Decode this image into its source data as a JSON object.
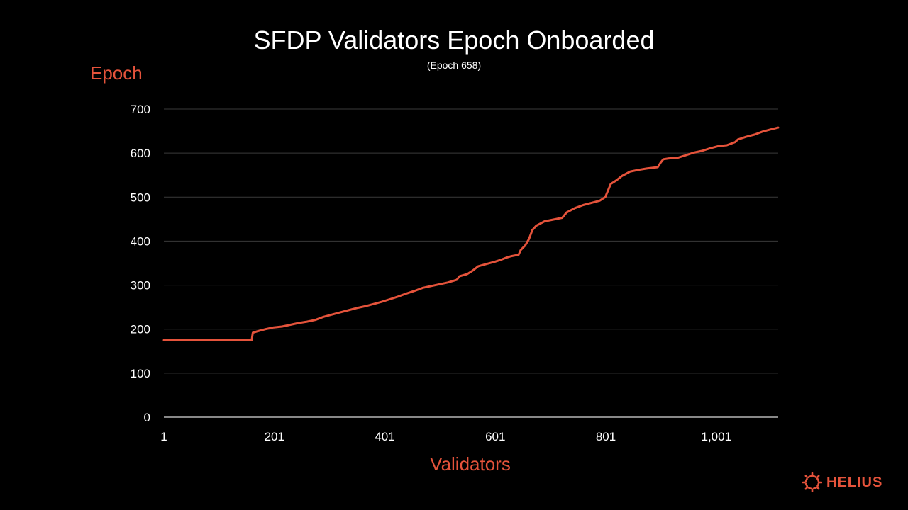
{
  "colors": {
    "background": "#000000",
    "accent": "#E5533B",
    "grid": "#3a3a3a",
    "text": "#ffffff"
  },
  "brand": {
    "name": "HELIUS",
    "icon": "helius-sun-icon"
  },
  "chart_data": {
    "type": "line",
    "title": "SFDP Validators Epoch Onboarded",
    "subtitle": "(Epoch 658)",
    "xlabel": "Validators",
    "ylabel": "Epoch",
    "ylim": [
      0,
      700
    ],
    "xlim": [
      1,
      1113
    ],
    "yticks": [
      0,
      100,
      200,
      300,
      400,
      500,
      600,
      700
    ],
    "xticks": [
      1,
      201,
      401,
      601,
      801,
      1001
    ],
    "xtick_labels": [
      "1",
      "201",
      "401",
      "601",
      "801",
      "1,001"
    ],
    "grid": true,
    "series": [
      {
        "color": "#E5533B",
        "points": [
          [
            1,
            175
          ],
          [
            160,
            175
          ],
          [
            162,
            192
          ],
          [
            170,
            195
          ],
          [
            185,
            200
          ],
          [
            200,
            204
          ],
          [
            215,
            206
          ],
          [
            230,
            210
          ],
          [
            245,
            214
          ],
          [
            260,
            217
          ],
          [
            275,
            221
          ],
          [
            290,
            228
          ],
          [
            305,
            233
          ],
          [
            320,
            238
          ],
          [
            335,
            243
          ],
          [
            350,
            248
          ],
          [
            365,
            252
          ],
          [
            380,
            257
          ],
          [
            395,
            262
          ],
          [
            410,
            268
          ],
          [
            425,
            274
          ],
          [
            440,
            281
          ],
          [
            455,
            287
          ],
          [
            470,
            294
          ],
          [
            485,
            298
          ],
          [
            500,
            302
          ],
          [
            515,
            306
          ],
          [
            531,
            312
          ],
          [
            536,
            320
          ],
          [
            550,
            325
          ],
          [
            560,
            333
          ],
          [
            570,
            343
          ],
          [
            585,
            348
          ],
          [
            600,
            353
          ],
          [
            610,
            357
          ],
          [
            620,
            362
          ],
          [
            630,
            366
          ],
          [
            643,
            369
          ],
          [
            647,
            380
          ],
          [
            655,
            390
          ],
          [
            662,
            405
          ],
          [
            668,
            425
          ],
          [
            675,
            435
          ],
          [
            690,
            445
          ],
          [
            710,
            450
          ],
          [
            722,
            453
          ],
          [
            730,
            465
          ],
          [
            745,
            475
          ],
          [
            760,
            482
          ],
          [
            775,
            487
          ],
          [
            790,
            492
          ],
          [
            800,
            500
          ],
          [
            805,
            515
          ],
          [
            810,
            530
          ],
          [
            820,
            538
          ],
          [
            830,
            548
          ],
          [
            845,
            558
          ],
          [
            860,
            562
          ],
          [
            875,
            565
          ],
          [
            895,
            568
          ],
          [
            900,
            578
          ],
          [
            905,
            586
          ],
          [
            915,
            588
          ],
          [
            930,
            589
          ],
          [
            945,
            595
          ],
          [
            960,
            601
          ],
          [
            975,
            605
          ],
          [
            990,
            611
          ],
          [
            1005,
            616
          ],
          [
            1020,
            618
          ],
          [
            1035,
            625
          ],
          [
            1040,
            631
          ],
          [
            1055,
            637
          ],
          [
            1070,
            642
          ],
          [
            1085,
            649
          ],
          [
            1100,
            654
          ],
          [
            1113,
            658
          ]
        ]
      }
    ]
  }
}
